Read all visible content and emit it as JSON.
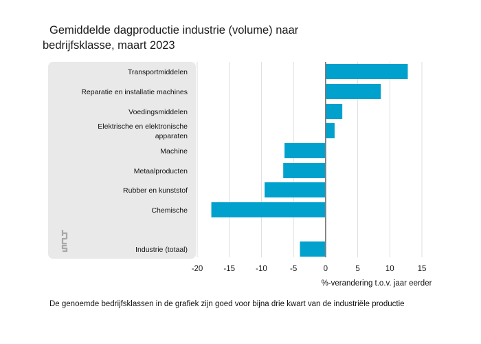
{
  "chart_data": {
    "type": "bar",
    "orientation": "horizontal",
    "title_lines": [
      "Gemiddelde dagproductie industrie (volume) naar",
      "bedrijfsklasse, maart 2023"
    ],
    "categories": [
      [
        "Transportmiddelen"
      ],
      [
        "Reparatie en installatie machines"
      ],
      [
        "Voedingsmiddelen"
      ],
      [
        "Elektrische en elektronische",
        "apparaten"
      ],
      [
        "Machine"
      ],
      [
        "Metaalproducten"
      ],
      [
        "Rubber en kunststof"
      ],
      [
        "Chemische"
      ],
      [
        "Industrie (totaal)"
      ]
    ],
    "values": [
      12.8,
      8.6,
      2.6,
      1.4,
      -6.4,
      -6.6,
      -9.5,
      -17.8,
      -4.0
    ],
    "xlim": [
      -20,
      15
    ],
    "xticks": [
      -20,
      -15,
      -10,
      -5,
      0,
      5,
      10,
      15
    ],
    "xlabel": "%-verandering t.o.v. jaar eerder",
    "grid": true,
    "bar_color": "#00a1cd"
  },
  "logo_text": "cbs",
  "footnote": "De genoemde bedrijfsklassen in de grafiek zijn goed voor bijna drie kwart van de industriële productie"
}
